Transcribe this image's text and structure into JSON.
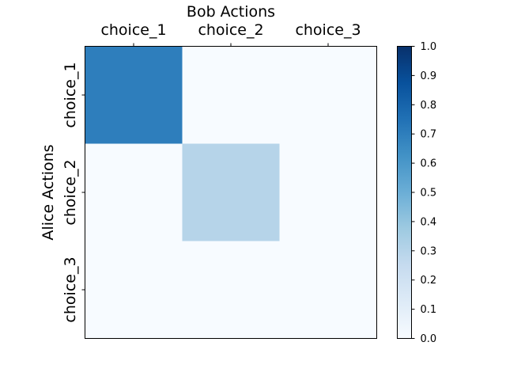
{
  "chart_data": {
    "type": "heatmap",
    "xlabel": "Bob Actions",
    "ylabel": "Alice Actions",
    "x_categories": [
      "choice_1",
      "choice_2",
      "choice_3"
    ],
    "y_categories": [
      "choice_1",
      "choice_2",
      "choice_3"
    ],
    "values": [
      [
        0.7,
        0.0,
        0.0
      ],
      [
        0.0,
        0.3,
        0.0
      ],
      [
        0.0,
        0.0,
        0.0
      ]
    ],
    "colormap": "Blues",
    "colorbar": {
      "range": [
        0.0,
        1.0
      ],
      "ticks": [
        "0.0",
        "0.1",
        "0.2",
        "0.3",
        "0.4",
        "0.5",
        "0.6",
        "0.7",
        "0.8",
        "0.9",
        "1.0"
      ]
    },
    "x_axis_position": "top",
    "grid": false
  }
}
